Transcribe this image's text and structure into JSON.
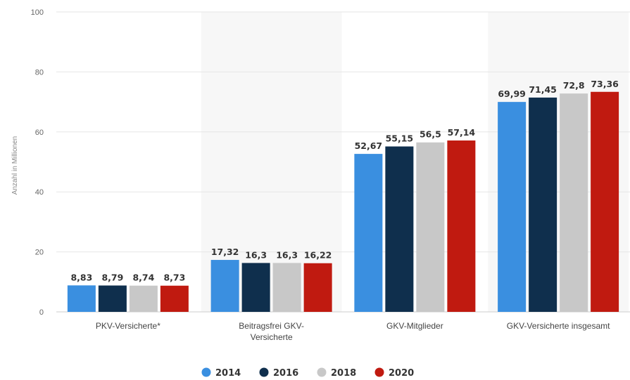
{
  "chart_data": {
    "type": "bar",
    "ylabel": "Anzahl in Millionen",
    "ylim": [
      0,
      100
    ],
    "yticks": [
      "0",
      "20",
      "40",
      "60",
      "80",
      "100"
    ],
    "grid": true,
    "legend_position": "bottom",
    "categories": [
      [
        "PKV-Versicherte*"
      ],
      [
        "Beitragsfrei GKV-",
        "Versicherte"
      ],
      [
        "GKV-Mitglieder"
      ],
      [
        "GKV-Versicherte insgesamt"
      ]
    ],
    "series": [
      {
        "name": "2014",
        "color": "#3a8fe0",
        "values": [
          8.83,
          17.32,
          52.67,
          69.99
        ],
        "labels": [
          "8,83",
          "17,32",
          "52,67",
          "69,99"
        ]
      },
      {
        "name": "2016",
        "color": "#0f2f4d",
        "values": [
          8.79,
          16.3,
          55.15,
          71.45
        ],
        "labels": [
          "8,79",
          "16,3",
          "55,15",
          "71,45"
        ]
      },
      {
        "name": "2018",
        "color": "#c8c8c8",
        "values": [
          8.74,
          16.3,
          56.5,
          72.8
        ],
        "labels": [
          "8,74",
          "16,3",
          "56,5",
          "72,8"
        ]
      },
      {
        "name": "2020",
        "color": "#c01a10",
        "values": [
          8.73,
          16.22,
          57.14,
          73.36
        ],
        "labels": [
          "8,73",
          "16,22",
          "57,14",
          "73,36"
        ]
      }
    ]
  }
}
